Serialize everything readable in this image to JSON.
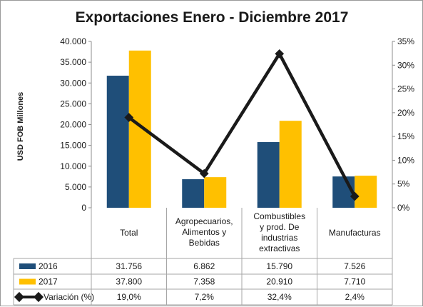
{
  "chart_data": {
    "type": "bar",
    "title": "Exportaciones Enero - Diciembre 2017",
    "ylabel": "USD FOB Millones",
    "ylim": [
      0,
      40000
    ],
    "y2lim": [
      0,
      35
    ],
    "y_ticks": [
      "0",
      "5.000",
      "10.000",
      "15.000",
      "20.000",
      "25.000",
      "30.000",
      "35.000",
      "40.000"
    ],
    "y2_ticks": [
      "0%",
      "5%",
      "10%",
      "15%",
      "20%",
      "25%",
      "30%",
      "35%"
    ],
    "categories": [
      [
        "Total"
      ],
      [
        "Agropecuarios,",
        "Alimentos y",
        "Bebidas"
      ],
      [
        "Combustibles",
        "y prod. De",
        "industrias",
        "extractivas"
      ],
      [
        "Manufacturas"
      ]
    ],
    "series": [
      {
        "name": "2016",
        "kind": "bar",
        "axis": "left",
        "color": "#1f4e79",
        "values": [
          31756,
          6862,
          15790,
          7526
        ],
        "labels": [
          "31.756",
          "6.862",
          "15.790",
          "7.526"
        ]
      },
      {
        "name": "2017",
        "kind": "bar",
        "axis": "left",
        "color": "#ffc000",
        "values": [
          37800,
          7358,
          20910,
          7710
        ],
        "labels": [
          "37.800",
          "7.358",
          "20.910",
          "7.710"
        ]
      },
      {
        "name": "Variación (%)",
        "kind": "line",
        "axis": "right",
        "color": "#1a1a1a",
        "values": [
          19.0,
          7.2,
          32.4,
          2.4
        ],
        "labels": [
          "19,0%",
          "7,2%",
          "32,4%",
          "2,4%"
        ]
      }
    ],
    "grid": false,
    "legend": "data-table-rows"
  }
}
